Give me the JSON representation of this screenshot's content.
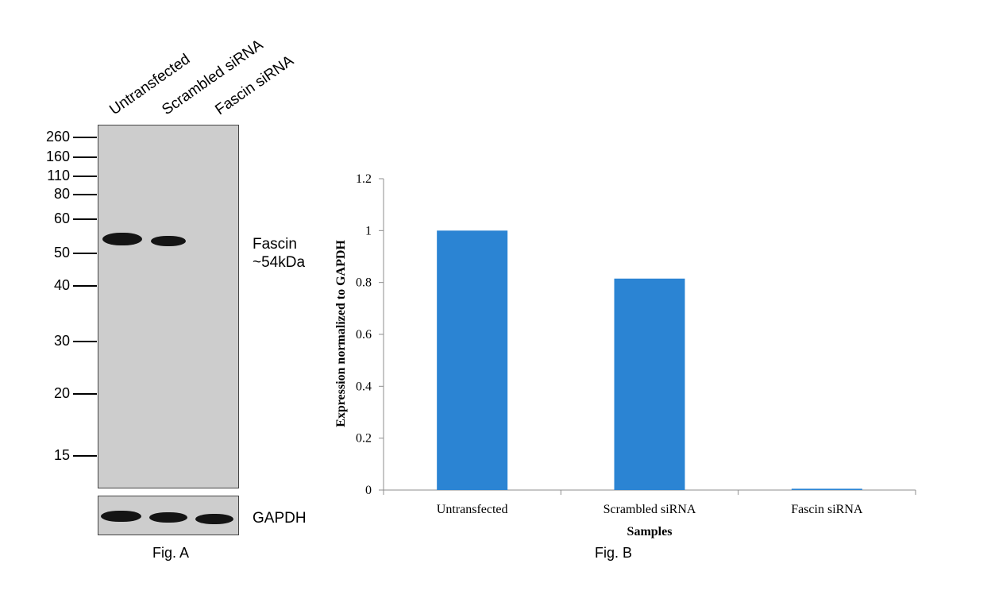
{
  "figA": {
    "lanes": [
      "Untransfected",
      "Scrambled siRNA",
      "Fascin siRNA"
    ],
    "markers": [
      "260",
      "160",
      "110",
      "80",
      "60",
      "50",
      "40",
      "30",
      "20",
      "15"
    ],
    "target_name": "Fascin",
    "target_size": "~54kDa",
    "loading_control": "GAPDH",
    "caption": "Fig. A"
  },
  "figB": {
    "caption": "Fig. B"
  },
  "chart_data": {
    "type": "bar",
    "categories": [
      "Untransfected",
      "Scrambled siRNA",
      "Fascin siRNA"
    ],
    "values": [
      1.0,
      0.815,
      0.005
    ],
    "xlabel": "Samples",
    "ylabel": "Expression normalized to GAPDH",
    "ylim": [
      0,
      1.2
    ],
    "yticks": [
      "0",
      "0.2",
      "0.4",
      "0.6",
      "0.8",
      "1",
      "1.2"
    ],
    "bar_color": "#2b84d3",
    "grid": false
  }
}
